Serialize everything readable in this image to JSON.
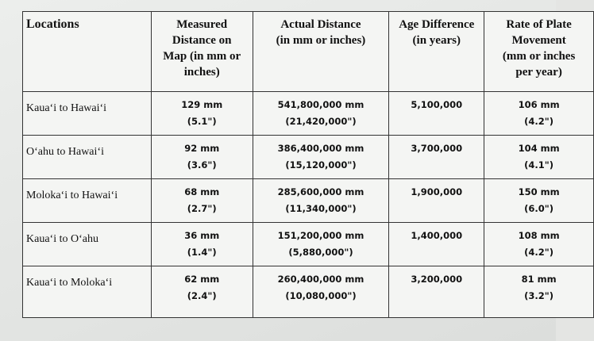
{
  "table": {
    "header": [
      [
        "Locations"
      ],
      [
        "Measured",
        "Distance on",
        "Map (in mm or",
        "inches)"
      ],
      [
        "Actual Distance",
        "(in mm or inches)"
      ],
      [
        "Age Difference",
        "(in years)"
      ],
      [
        "Rate of Plate",
        "Movement",
        "(mm or inches",
        "per year)"
      ]
    ],
    "rows": [
      [
        [
          "Kauaʻi to Hawaiʻi"
        ],
        [
          "129 mm",
          "(5.1\")"
        ],
        [
          "541,800,000 mm",
          "(21,420,000\")"
        ],
        [
          "5,100,000"
        ],
        [
          "106 mm",
          "(4.2\")"
        ]
      ],
      [
        [
          "Oʻahu to Hawaiʻi"
        ],
        [
          "92 mm",
          "(3.6\")"
        ],
        [
          "386,400,000 mm",
          "(15,120,000\")"
        ],
        [
          "3,700,000"
        ],
        [
          "104 mm",
          "(4.1\")"
        ]
      ],
      [
        [
          "Molokaʻi to Hawaiʻi"
        ],
        [
          "68 mm",
          "(2.7\")"
        ],
        [
          "285,600,000 mm",
          "(11,340,000\")"
        ],
        [
          "1,900,000"
        ],
        [
          "150 mm",
          "(6.0\")"
        ]
      ],
      [
        [
          "Kauaʻi to Oʻahu"
        ],
        [
          "36 mm",
          "(1.4\")"
        ],
        [
          "151,200,000 mm",
          "(5,880,000\")"
        ],
        [
          "1,400,000"
        ],
        [
          "108 mm",
          "(4.2\")"
        ]
      ],
      [
        [
          "Kauaʻi to Molokaʻi"
        ],
        [
          "62 mm",
          "(2.4\")"
        ],
        [
          "260,400,000 mm",
          "(10,080,000\")"
        ],
        [
          "3,200,000"
        ],
        [
          "81 mm",
          "(3.2\")"
        ]
      ]
    ]
  }
}
